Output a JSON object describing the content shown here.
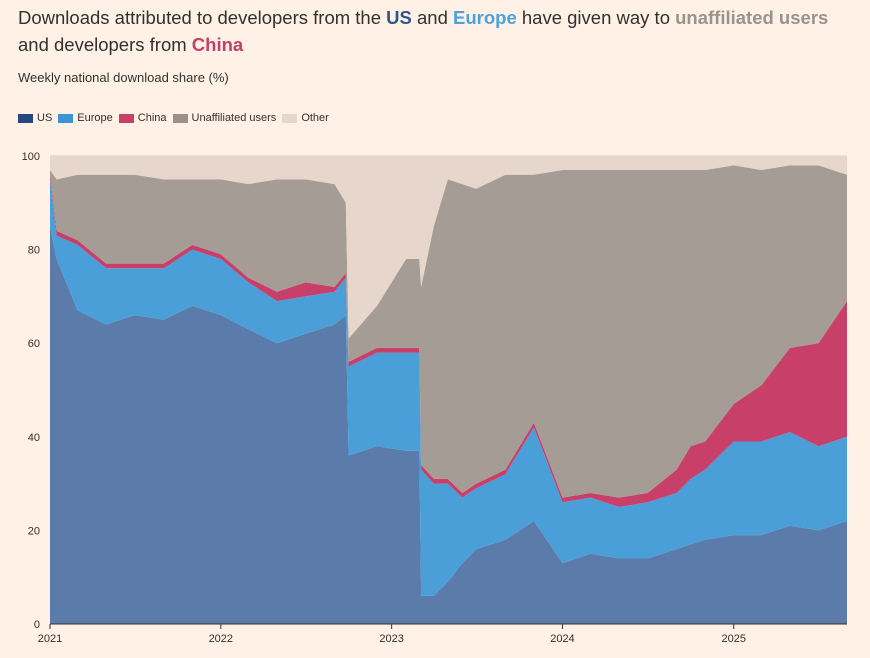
{
  "title": {
    "part1": "Downloads attributed to developers from the ",
    "us": "US",
    "part2": " and ",
    "europe": "Europe",
    "part3": " have given way to ",
    "unaffiliated": "unaffiliated users",
    "part4": " and developers from ",
    "china": "China"
  },
  "subtitle": "Weekly national download share (%)",
  "legend": [
    {
      "label": "US",
      "color": "#26477d"
    },
    {
      "label": "Europe",
      "color": "#3a95d6"
    },
    {
      "label": "China",
      "color": "#c8406a"
    },
    {
      "label": "Unaffiliated users",
      "color": "#9a918b"
    },
    {
      "label": "Other",
      "color": "#e6d6cb"
    }
  ],
  "chart_data": {
    "type": "area",
    "stacked": true,
    "title": "Weekly national download share (%)",
    "ylim": [
      0,
      100
    ],
    "yticks": [
      0,
      20,
      40,
      60,
      80,
      100
    ],
    "xticks": [
      "2021",
      "2022",
      "2023",
      "2024",
      "2025"
    ],
    "xlim": [
      "2021-01-01",
      "2025-08-31"
    ],
    "grid": true,
    "legend_position": "top-left",
    "x": [
      "2021-01-01",
      "2021-01-15",
      "2021-03-01",
      "2021-05-01",
      "2021-07-01",
      "2021-09-01",
      "2021-11-01",
      "2022-01-01",
      "2022-03-01",
      "2022-05-01",
      "2022-07-01",
      "2022-09-01",
      "2022-09-25",
      "2022-10-01",
      "2022-12-01",
      "2023-02-01",
      "2023-03-01",
      "2023-03-05",
      "2023-04-01",
      "2023-05-01",
      "2023-06-01",
      "2023-07-01",
      "2023-09-01",
      "2023-11-01",
      "2024-01-01",
      "2024-03-01",
      "2024-05-01",
      "2024-07-01",
      "2024-09-01",
      "2024-10-01",
      "2024-11-01",
      "2025-01-01",
      "2025-03-01",
      "2025-05-01",
      "2025-07-01",
      "2025-08-31"
    ],
    "series": [
      {
        "name": "US",
        "color": "#5b7bab",
        "values": [
          85,
          78,
          67,
          64,
          66,
          65,
          68,
          66,
          63,
          60,
          62,
          64,
          66,
          36,
          38,
          37,
          37,
          6,
          6,
          9,
          13,
          16,
          18,
          22,
          13,
          15,
          14,
          14,
          16,
          17,
          18,
          19,
          19,
          21,
          20,
          22
        ]
      },
      {
        "name": "Europe",
        "color": "#4a9fd8",
        "values": [
          10,
          5,
          14,
          12,
          10,
          11,
          12,
          12,
          10,
          9,
          8,
          7,
          8,
          19,
          20,
          21,
          21,
          27,
          24,
          21,
          14,
          13,
          14,
          20,
          13,
          12,
          11,
          12,
          12,
          14,
          15,
          20,
          20,
          20,
          18,
          18
        ]
      },
      {
        "name": "China",
        "color": "#c8406a",
        "values": [
          1,
          1,
          1,
          1,
          1,
          1,
          1,
          1,
          1,
          2,
          3,
          1,
          1,
          1,
          1,
          1,
          1,
          1,
          1,
          1,
          1,
          1,
          1,
          1,
          1,
          1,
          2,
          2,
          5,
          7,
          6,
          8,
          12,
          18,
          22,
          29
        ]
      },
      {
        "name": "Unaffiliated users",
        "color": "#a59c96",
        "values": [
          1,
          11,
          14,
          19,
          19,
          18,
          14,
          16,
          20,
          24,
          22,
          22,
          15,
          5,
          9,
          19,
          19,
          38,
          54,
          64,
          66,
          63,
          63,
          53,
          70,
          69,
          70,
          69,
          64,
          59,
          58,
          51,
          46,
          39,
          38,
          27
        ]
      },
      {
        "name": "Other",
        "color": "#e6d6cb",
        "values": [
          3,
          5,
          4,
          4,
          4,
          5,
          5,
          5,
          6,
          5,
          5,
          6,
          10,
          39,
          32,
          22,
          22,
          28,
          15,
          5,
          6,
          7,
          4,
          4,
          3,
          3,
          3,
          3,
          3,
          3,
          3,
          2,
          3,
          2,
          2,
          4
        ]
      }
    ]
  }
}
